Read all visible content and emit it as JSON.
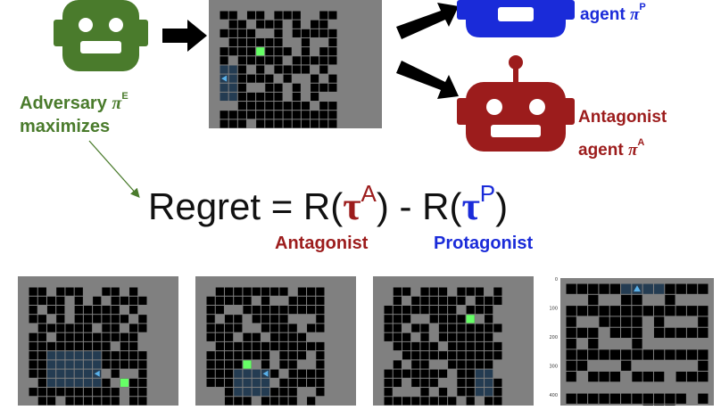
{
  "adversary": {
    "line1": "Adversary",
    "pi": "π",
    "sup": "E",
    "line2": "maximizes"
  },
  "protagonist_agent": {
    "word": "agent",
    "pi": "π",
    "sup": "P"
  },
  "antagonist_agent": {
    "line1": "Antagonist",
    "word": "agent",
    "pi": "π",
    "sup": "A"
  },
  "formula": {
    "lhs": "Regret = R(",
    "tau": "τ",
    "sup_a": "A",
    "mid": ") - R(",
    "sup_p": "P",
    "rhs": ")"
  },
  "labels": {
    "antagonist": "Antagonist",
    "protagonist": "Protagonist"
  },
  "plot_ticks": [
    "0",
    "100",
    "200",
    "300",
    "400"
  ],
  "colors": {
    "adversary": "#4a7b2c",
    "protagonist": "#1a2bd9",
    "antagonist": "#9c1c1c",
    "goal": "#66ff66",
    "visited": "#243c52",
    "agent": "#5ab0e8"
  }
}
